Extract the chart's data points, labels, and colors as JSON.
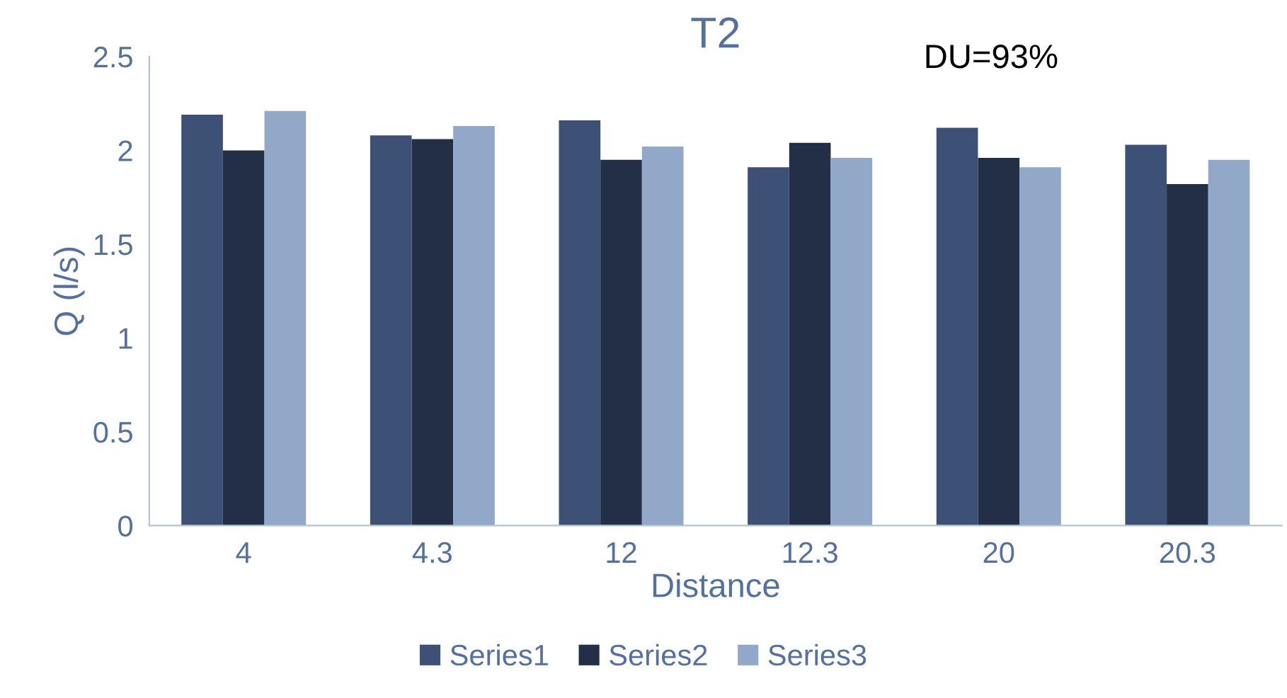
{
  "chart_data": {
    "type": "bar",
    "title": "T2",
    "xlabel": "Distance",
    "ylabel": "Q (l/s)",
    "categories": [
      "4",
      "4.3",
      "12",
      "12.3",
      "20",
      "20.3"
    ],
    "series": [
      {
        "name": "Series1",
        "color": "#3d5177",
        "values": [
          2.19,
          2.08,
          2.16,
          1.91,
          2.12,
          2.03
        ]
      },
      {
        "name": "Series2",
        "color": "#232f47",
        "values": [
          2.0,
          2.06,
          1.95,
          2.04,
          1.96,
          1.82
        ]
      },
      {
        "name": "Series3",
        "color": "#91a8c8",
        "values": [
          2.21,
          2.13,
          2.02,
          1.96,
          1.91,
          1.95
        ]
      }
    ],
    "ylim": [
      0,
      2.5
    ],
    "yticks": [
      0,
      0.5,
      1,
      1.5,
      2,
      2.5
    ],
    "grid": false,
    "legend": "bottom",
    "annotations": [
      "DU=93%"
    ]
  }
}
